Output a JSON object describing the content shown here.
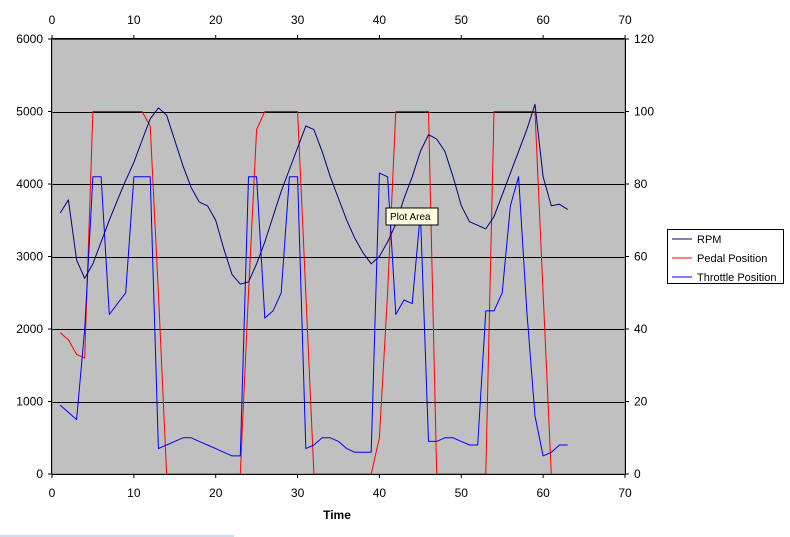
{
  "chart_data": {
    "type": "line",
    "xlabel": "Time",
    "xlim": [
      0,
      70
    ],
    "x_ticks": [
      0,
      10,
      20,
      30,
      40,
      50,
      60,
      70
    ],
    "ylim_primary": [
      0,
      6000
    ],
    "y_ticks_primary": [
      0,
      1000,
      2000,
      3000,
      4000,
      5000,
      6000
    ],
    "ylim_secondary": [
      0,
      120
    ],
    "y_ticks_secondary": [
      0,
      20,
      40,
      60,
      80,
      100,
      120
    ],
    "grid": "horizontal major",
    "plot_background": "#c0c0c0",
    "legend_position": "right",
    "tooltip": "Plot Area",
    "series": [
      {
        "name": "RPM",
        "axis": "primary",
        "color": "#000080",
        "points": [
          [
            1,
            3600
          ],
          [
            2,
            3780
          ],
          [
            3,
            2950
          ],
          [
            4,
            2700
          ],
          [
            5,
            2900
          ],
          [
            6,
            3200
          ],
          [
            7,
            3500
          ],
          [
            8,
            3780
          ],
          [
            9,
            4050
          ],
          [
            10,
            4300
          ],
          [
            11,
            4600
          ],
          [
            12,
            4900
          ],
          [
            13,
            5050
          ],
          [
            14,
            4950
          ],
          [
            15,
            4600
          ],
          [
            16,
            4250
          ],
          [
            17,
            3950
          ],
          [
            18,
            3750
          ],
          [
            19,
            3700
          ],
          [
            20,
            3500
          ],
          [
            21,
            3100
          ],
          [
            22,
            2750
          ],
          [
            23,
            2620
          ],
          [
            24,
            2650
          ],
          [
            25,
            2900
          ],
          [
            26,
            3200
          ],
          [
            27,
            3550
          ],
          [
            28,
            3900
          ],
          [
            29,
            4200
          ],
          [
            30,
            4500
          ],
          [
            31,
            4800
          ],
          [
            32,
            4750
          ],
          [
            33,
            4450
          ],
          [
            34,
            4100
          ],
          [
            35,
            3800
          ],
          [
            36,
            3500
          ],
          [
            37,
            3250
          ],
          [
            38,
            3050
          ],
          [
            39,
            2900
          ],
          [
            40,
            3000
          ],
          [
            41,
            3200
          ],
          [
            42,
            3450
          ],
          [
            43,
            3800
          ],
          [
            44,
            4100
          ],
          [
            45,
            4450
          ],
          [
            46,
            4680
          ],
          [
            47,
            4620
          ],
          [
            48,
            4450
          ],
          [
            49,
            4100
          ],
          [
            50,
            3700
          ],
          [
            51,
            3480
          ],
          [
            52,
            3430
          ],
          [
            53,
            3380
          ],
          [
            54,
            3550
          ],
          [
            55,
            3850
          ],
          [
            56,
            4150
          ],
          [
            57,
            4450
          ],
          [
            58,
            4750
          ],
          [
            59,
            5100
          ],
          [
            60,
            4100
          ],
          [
            61,
            3700
          ],
          [
            62,
            3720
          ],
          [
            63,
            3650
          ]
        ]
      },
      {
        "name": "Pedal Position",
        "axis": "secondary",
        "color": "#ff0000",
        "points": [
          [
            1,
            39
          ],
          [
            2,
            37
          ],
          [
            3,
            33
          ],
          [
            4,
            32
          ],
          [
            5,
            100
          ],
          [
            6,
            100
          ],
          [
            7,
            100
          ],
          [
            8,
            100
          ],
          [
            9,
            100
          ],
          [
            10,
            100
          ],
          [
            11,
            100
          ],
          [
            12,
            96
          ],
          [
            13,
            50
          ],
          [
            14,
            0
          ],
          [
            23,
            0
          ],
          [
            24,
            50
          ],
          [
            25,
            95
          ],
          [
            26,
            100
          ],
          [
            27,
            100
          ],
          [
            28,
            100
          ],
          [
            29,
            100
          ],
          [
            30,
            100
          ],
          [
            31,
            50
          ],
          [
            32,
            0
          ],
          [
            39,
            0
          ],
          [
            40,
            10
          ],
          [
            41,
            50
          ],
          [
            42,
            100
          ],
          [
            43,
            100
          ],
          [
            44,
            100
          ],
          [
            45,
            100
          ],
          [
            46,
            100
          ],
          [
            47,
            0
          ],
          [
            53,
            0
          ],
          [
            54,
            100
          ],
          [
            55,
            100
          ],
          [
            56,
            100
          ],
          [
            57,
            100
          ],
          [
            58,
            100
          ],
          [
            59,
            100
          ],
          [
            60,
            50
          ],
          [
            61,
            0
          ]
        ]
      },
      {
        "name": "Throttle Position",
        "axis": "secondary",
        "color": "#0000ff",
        "points": [
          [
            1,
            19
          ],
          [
            2,
            17
          ],
          [
            3,
            15
          ],
          [
            4,
            40
          ],
          [
            5,
            82
          ],
          [
            6,
            82
          ],
          [
            7,
            44
          ],
          [
            8,
            47
          ],
          [
            9,
            50
          ],
          [
            10,
            82
          ],
          [
            11,
            82
          ],
          [
            12,
            82
          ],
          [
            13,
            7
          ],
          [
            14,
            8
          ],
          [
            15,
            9
          ],
          [
            16,
            10
          ],
          [
            17,
            10
          ],
          [
            18,
            9
          ],
          [
            19,
            8
          ],
          [
            20,
            7
          ],
          [
            21,
            6
          ],
          [
            22,
            5
          ],
          [
            23,
            5
          ],
          [
            24,
            82
          ],
          [
            25,
            82
          ],
          [
            26,
            43
          ],
          [
            27,
            45
          ],
          [
            28,
            50
          ],
          [
            29,
            82
          ],
          [
            30,
            82
          ],
          [
            31,
            7
          ],
          [
            32,
            8
          ],
          [
            33,
            10
          ],
          [
            34,
            10
          ],
          [
            35,
            9
          ],
          [
            36,
            7
          ],
          [
            37,
            6
          ],
          [
            38,
            6
          ],
          [
            39,
            6
          ],
          [
            40,
            83
          ],
          [
            41,
            82
          ],
          [
            42,
            44
          ],
          [
            43,
            48
          ],
          [
            44,
            47
          ],
          [
            45,
            72
          ],
          [
            46,
            9
          ],
          [
            47,
            9
          ],
          [
            48,
            10
          ],
          [
            49,
            10
          ],
          [
            50,
            9
          ],
          [
            51,
            8
          ],
          [
            52,
            8
          ],
          [
            53,
            45
          ],
          [
            54,
            45
          ],
          [
            55,
            50
          ],
          [
            56,
            74
          ],
          [
            57,
            82
          ],
          [
            58,
            45
          ],
          [
            59,
            16
          ],
          [
            60,
            5
          ],
          [
            61,
            6
          ],
          [
            62,
            8
          ],
          [
            63,
            8
          ]
        ]
      }
    ]
  }
}
